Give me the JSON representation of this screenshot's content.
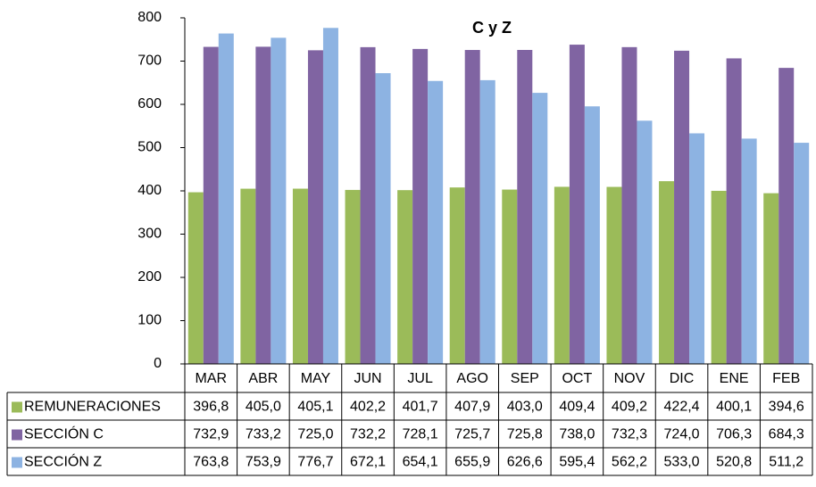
{
  "chart_data": {
    "type": "bar",
    "title": "C y Z",
    "categories": [
      "MAR",
      "ABR",
      "MAY",
      "JUN",
      "JUL",
      "AGO",
      "SEP",
      "OCT",
      "NOV",
      "DIC",
      "ENE",
      "FEB"
    ],
    "series": [
      {
        "name": "REMUNERACIONES",
        "color": "#9bbb59",
        "values": [
          396.8,
          405.0,
          405.1,
          402.2,
          401.7,
          407.9,
          403.0,
          409.4,
          409.2,
          422.4,
          400.1,
          394.6
        ],
        "value_labels": [
          "396,8",
          "405,0",
          "405,1",
          "402,2",
          "401,7",
          "407,9",
          "403,0",
          "409,4",
          "409,2",
          "422,4",
          "400,1",
          "394,6"
        ]
      },
      {
        "name": "SECCIÓN C",
        "color": "#8064a2",
        "values": [
          732.9,
          733.2,
          725.0,
          732.2,
          728.1,
          725.7,
          725.8,
          738.0,
          732.3,
          724.0,
          706.3,
          684.3
        ],
        "value_labels": [
          "732,9",
          "733,2",
          "725,0",
          "732,2",
          "728,1",
          "725,7",
          "725,8",
          "738,0",
          "732,3",
          "724,0",
          "706,3",
          "684,3"
        ]
      },
      {
        "name": "SECCIÓN Z",
        "color": "#8db3e2",
        "values": [
          763.8,
          753.9,
          776.7,
          672.1,
          654.1,
          655.9,
          626.6,
          595.4,
          562.2,
          533.0,
          520.8,
          511.2
        ],
        "value_labels": [
          "763,8",
          "753,9",
          "776,7",
          "672,1",
          "654,1",
          "655,9",
          "626,6",
          "595,4",
          "562,2",
          "533,0",
          "520,8",
          "511,2"
        ]
      }
    ],
    "ylim": [
      0,
      800
    ],
    "yticks": [
      0,
      100,
      200,
      300,
      400,
      500,
      600,
      700,
      800
    ],
    "grid": false
  }
}
